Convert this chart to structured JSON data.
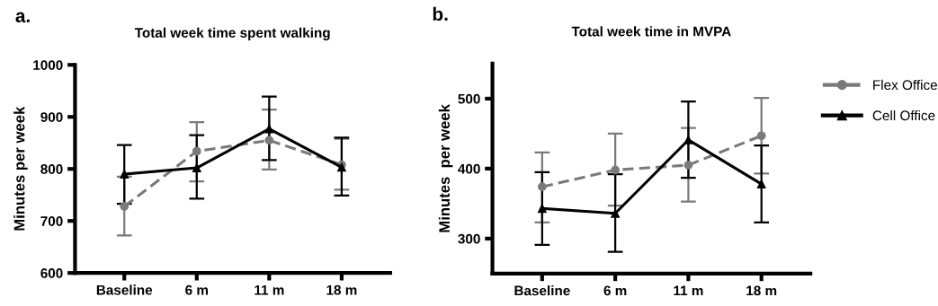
{
  "chart_data": [
    {
      "type": "line",
      "title": "Total week time spent walking",
      "ylabel": "Minutes per week",
      "annotations": [
        "a."
      ],
      "categories": [
        "Baseline",
        "6 m",
        "11 m",
        "18 m"
      ],
      "ylim": [
        600,
        1000
      ],
      "yticks": [
        600,
        700,
        800,
        900,
        1000
      ],
      "grid": false,
      "legend": false,
      "series": [
        {
          "color": "#7a7a7a",
          "marker": "circle",
          "line_style": "dashed",
          "values": [
            728,
            834,
            855,
            808
          ],
          "errors": [
            [
              672,
              785
            ],
            [
              776,
              890
            ],
            [
              799,
              914
            ],
            [
              760,
              858
            ]
          ]
        },
        {
          "color": "#000000",
          "marker": "triangle",
          "line_style": "solid",
          "values": [
            790,
            802,
            877,
            803
          ],
          "errors": [
            [
              733,
              846
            ],
            [
              743,
              865
            ],
            [
              817,
              939
            ],
            [
              749,
              860
            ]
          ]
        }
      ]
    },
    {
      "type": "line",
      "title": "Total week time in MVPA",
      "ylabel": "Minutes  per week",
      "annotations": [
        "b."
      ],
      "categories": [
        "Baseline",
        "6 m",
        "11 m",
        "18 m"
      ],
      "ylim": [
        250,
        550
      ],
      "yticks": [
        300,
        400,
        500
      ],
      "grid": false,
      "legend": "right",
      "series": [
        {
          "name": "Flex Office",
          "color": "#7a7a7a",
          "marker": "circle",
          "line_style": "dashed",
          "values": [
            374,
            398,
            405,
            447
          ],
          "errors": [
            [
              323,
              423
            ],
            [
              347,
              450
            ],
            [
              353,
              458
            ],
            [
              393,
              501
            ]
          ]
        },
        {
          "name": "Cell Office",
          "color": "#000000",
          "marker": "triangle",
          "line_style": "solid",
          "values": [
            343,
            336,
            441,
            378
          ],
          "errors": [
            [
              291,
              395
            ],
            [
              281,
              392
            ],
            [
              387,
              496
            ],
            [
              323,
              433
            ]
          ]
        }
      ]
    }
  ]
}
